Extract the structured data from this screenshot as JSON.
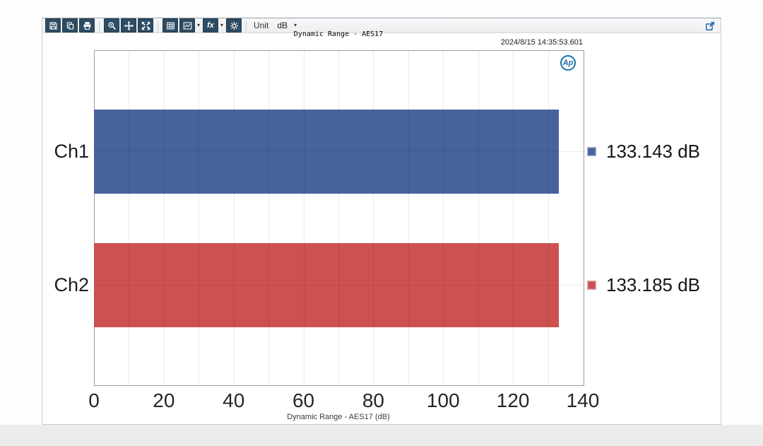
{
  "toolbar": {
    "icons": [
      "save",
      "copy-image",
      "print",
      "zoom",
      "pan",
      "fit-to-window",
      "data-table",
      "graph-type",
      "function",
      "settings"
    ],
    "fx_label": "fx",
    "unit_label": "Unit",
    "unit_value": "dB",
    "export_icon": "open-in-new-window"
  },
  "header": {
    "title": "Dynamic Range - AES17",
    "timestamp": "2024/8/15 14:35:53.601"
  },
  "logo": {
    "text": "Ap"
  },
  "chart_data": {
    "type": "bar",
    "orientation": "horizontal",
    "title": "Dynamic Range - AES17",
    "categories": [
      "Ch1",
      "Ch2"
    ],
    "values": [
      133.143,
      133.185
    ],
    "value_labels": [
      "133.143 dB",
      "133.185 dB"
    ],
    "bar_colors": [
      "#47639E",
      "#CC5150"
    ],
    "xlabel": "Dynamic Range - AES17 (dB)",
    "xlim": [
      0,
      140
    ],
    "xticks": [
      0,
      20,
      40,
      60,
      80,
      100,
      120,
      140
    ],
    "minor_grid_step": 10,
    "grid": true,
    "legend_position": "right"
  }
}
